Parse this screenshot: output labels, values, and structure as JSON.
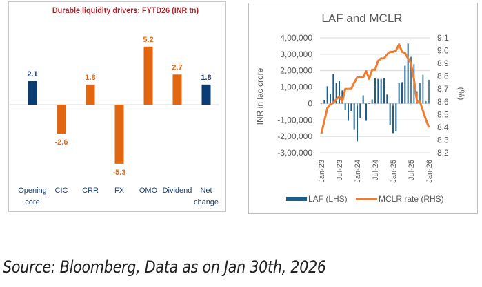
{
  "chart_data": [
    {
      "type": "bar",
      "title": "Durable liquidity drivers: FYTD26 (INR tn)",
      "categories": [
        "Opening core",
        "CIC",
        "CRR",
        "FX",
        "OMO",
        "Dividend",
        "Net change"
      ],
      "category_lines": [
        [
          "Opening",
          "core"
        ],
        [
          "CIC"
        ],
        [
          "CRR"
        ],
        [
          "FX"
        ],
        [
          "OMO"
        ],
        [
          "Dividend"
        ],
        [
          "Net",
          "change"
        ]
      ],
      "values": [
        2.1,
        -2.6,
        1.8,
        -5.3,
        5.2,
        2.7,
        1.8
      ],
      "labels": [
        "2.1",
        "-2.6",
        "1.8",
        "-5.3",
        "5.2",
        "2.7",
        "1.8"
      ],
      "bar_kinds": [
        "total",
        "driver",
        "driver",
        "driver",
        "driver",
        "driver",
        "total"
      ],
      "colors": {
        "total": "#0b3d73",
        "driver": "#e2660f",
        "title": "#a8242a",
        "category_text": "#1f3f73",
        "axis": "#d9d9d9"
      },
      "xlabel": "",
      "ylabel": "",
      "ylim": [
        -5.8,
        6.3
      ],
      "grid": false,
      "legend": "none"
    },
    {
      "type": "bar+line",
      "title": "LAF and MCLR",
      "x": [
        "Jan-23",
        "Feb-23",
        "Mar-23",
        "Apr-23",
        "May-23",
        "Jun-23",
        "Jul-23",
        "Aug-23",
        "Sep-23",
        "Oct-23",
        "Nov-23",
        "Dec-23",
        "Jan-24",
        "Feb-24",
        "Mar-24",
        "Apr-24",
        "May-24",
        "Jun-24",
        "Jul-24",
        "Aug-24",
        "Sep-24",
        "Oct-24",
        "Nov-24",
        "Dec-24",
        "Jan-25",
        "Feb-25",
        "Mar-25",
        "Apr-25",
        "May-25",
        "Jun-25",
        "Jul-25",
        "Aug-25",
        "Sep-25",
        "Oct-25",
        "Nov-25",
        "Dec-25",
        "Jan-26"
      ],
      "x_tick_labels": [
        "Jan-23",
        "Jul-23",
        "Jan-24",
        "Jul-24",
        "Jan-25",
        "Jul-25",
        "Jan-26"
      ],
      "series": [
        {
          "name": "LAF (LHS)",
          "type": "bar",
          "axis": "left",
          "color": "#1d5f8a",
          "values": [
            5000,
            20000,
            105000,
            60000,
            180000,
            125000,
            140000,
            80000,
            -40000,
            -105000,
            -45000,
            -160000,
            -230000,
            -90000,
            50000,
            -105000,
            2000,
            25000,
            155000,
            150000,
            150000,
            155000,
            55000,
            -130000,
            -180000,
            -170000,
            125000,
            130000,
            230000,
            365000,
            285000,
            240000,
            75000,
            125000,
            175000,
            15000,
            145000
          ]
        },
        {
          "name": "MCLR rate (RHS)",
          "type": "line",
          "axis": "right",
          "color": "#ed7d31",
          "values": [
            8.35,
            8.45,
            8.55,
            8.58,
            8.59,
            8.62,
            8.64,
            8.6,
            8.7,
            8.7,
            8.7,
            8.75,
            8.79,
            8.79,
            8.79,
            8.84,
            8.78,
            8.85,
            8.85,
            8.92,
            8.94,
            8.94,
            8.97,
            8.99,
            8.99,
            9.0,
            9.05,
            8.99,
            8.98,
            8.94,
            8.9,
            8.78,
            8.6,
            8.6,
            8.53,
            8.46,
            8.4
          ]
        }
      ],
      "left_axis": {
        "label": "INR in lac crore",
        "ylim": [
          -300000,
          400000
        ],
        "ticks": [
          "4,00,000",
          "3,00,000",
          "2,00,000",
          "1,00,000",
          "0",
          "-1,00,000",
          "-2,00,000",
          "-3,00,000"
        ],
        "tick_values": [
          400000,
          300000,
          200000,
          100000,
          0,
          -100000,
          -200000,
          -300000
        ]
      },
      "right_axis": {
        "label": "(%)",
        "ylim": [
          8.2,
          9.1
        ],
        "ticks": [
          "9.1",
          "9.0",
          "8.9",
          "8.8",
          "8.7",
          "8.6",
          "8.5",
          "8.4",
          "8.3",
          "8.2"
        ],
        "tick_values": [
          9.1,
          9.0,
          8.9,
          8.8,
          8.7,
          8.6,
          8.5,
          8.4,
          8.3,
          8.2
        ]
      },
      "grid": true,
      "legend": "bottom",
      "colors": {
        "title": "#595959",
        "text": "#595959",
        "grid": "#d9d9d9"
      }
    }
  ],
  "footer": {
    "source": "Source: Bloomberg, Data as on Jan 30th, 2026"
  }
}
